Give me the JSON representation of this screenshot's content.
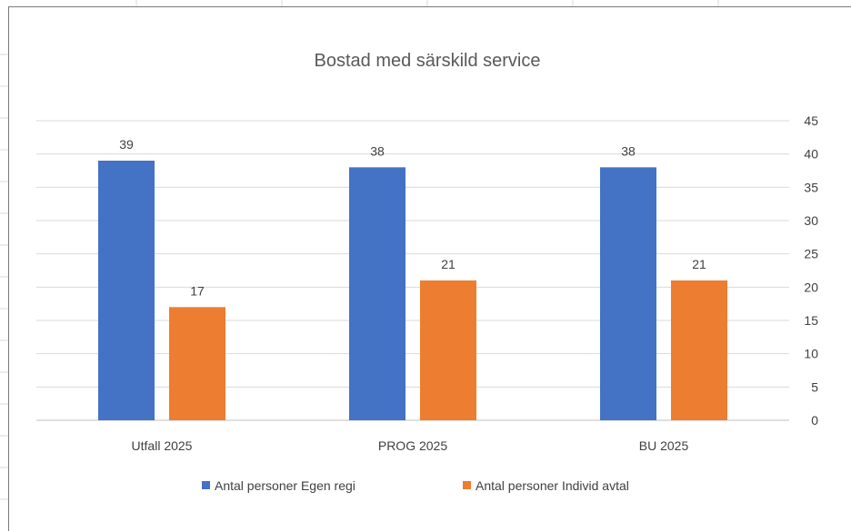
{
  "chart_data": {
    "type": "bar",
    "title": "Bostad med särskild service",
    "categories": [
      "Utfall 2025",
      "PROG 2025",
      "BU 2025"
    ],
    "series": [
      {
        "name": "Antal personer Egen regi",
        "values": [
          39,
          38,
          38
        ],
        "color": "#4472C4"
      },
      {
        "name": "Antal personer Individ avtal",
        "values": [
          17,
          21,
          21
        ],
        "color": "#ED7D31"
      }
    ],
    "ylim": [
      0,
      45
    ],
    "yticks": [
      0,
      5,
      10,
      15,
      20,
      25,
      30,
      35,
      40,
      45
    ],
    "y_axis_side": "right",
    "grid": true,
    "legend_position": "bottom"
  }
}
